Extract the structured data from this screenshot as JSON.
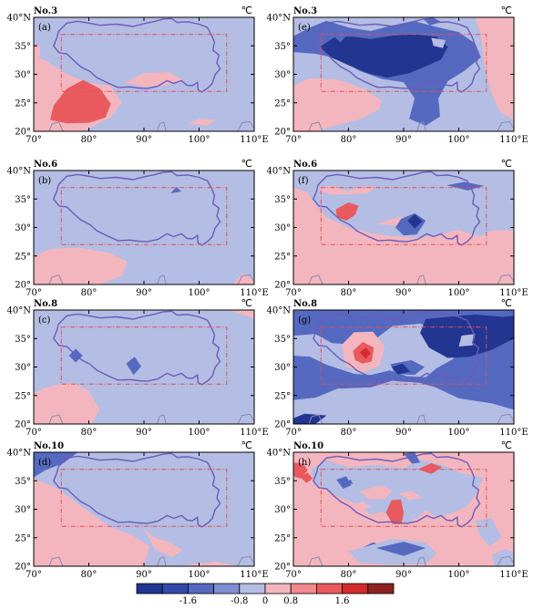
{
  "colors": {
    "light_blue": "#b4bde3",
    "mid_blue": "#5569c0",
    "dark_blue": "#223590",
    "light_pink": "#f4b6be",
    "red": "#e85a5e",
    "dark_red": "#d42c2e",
    "plateau_outline": "#6a5cbb",
    "region_box": "#e0505a",
    "frame": "#000000"
  },
  "unit": "℃",
  "x_ticks": [
    "70°",
    "80°",
    "90°",
    "100°",
    "110°E"
  ],
  "y_ticks": [
    "40°N",
    "35°",
    "30°",
    "25°",
    "20°"
  ],
  "panels": [
    {
      "id": "a",
      "label": "(a)",
      "case": "No.3"
    },
    {
      "id": "e",
      "label": "(e)",
      "case": "No.3"
    },
    {
      "id": "b",
      "label": "(b)",
      "case": "No.6"
    },
    {
      "id": "f",
      "label": "(f)",
      "case": "No.6"
    },
    {
      "id": "c",
      "label": "(c)",
      "case": "No.8"
    },
    {
      "id": "g",
      "label": "(g)",
      "case": "No.8"
    },
    {
      "id": "d",
      "label": "(d)",
      "case": "No.10"
    },
    {
      "id": "h",
      "label": "(h)",
      "case": "No.10"
    }
  ],
  "colorbar": {
    "colors": [
      "#223590",
      "#3448a8",
      "#5569c0",
      "#7f8ed2",
      "#b4bde3",
      "#f4b6be",
      "#ee8a90",
      "#e85a5e",
      "#d42c2e",
      "#8c2323"
    ],
    "tick_labels": [
      "-1.6",
      "-0.8",
      "0",
      "0.8",
      "1.6"
    ]
  }
}
